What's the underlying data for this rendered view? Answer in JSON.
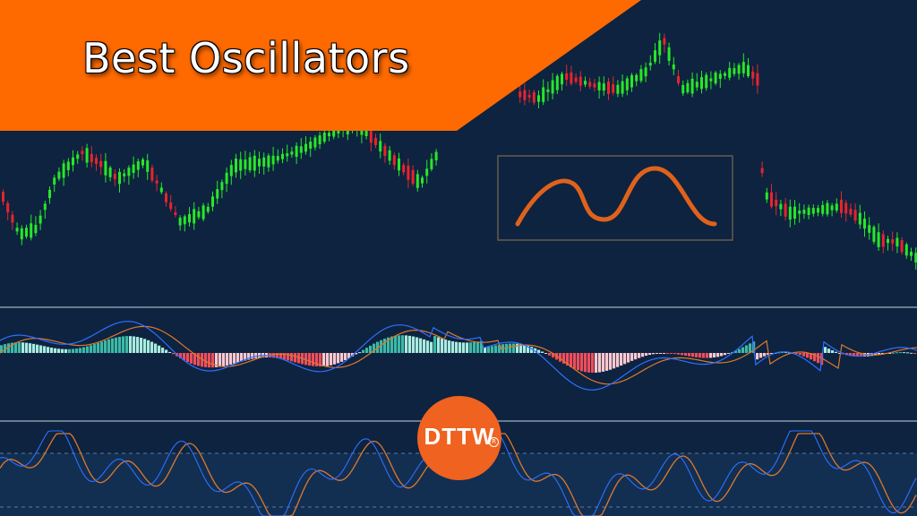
{
  "banner": {
    "title": "Best Oscillators",
    "color": "#ff6a00"
  },
  "logo": {
    "text": "DTTW",
    "registered": "R",
    "color": "#f0621f"
  },
  "colors": {
    "background": "#0d2340",
    "candle_up": "#27e827",
    "candle_down": "#e8242c",
    "macd_line": "#2f6fff",
    "signal_line": "#e0782a",
    "hist_pos": "#3db9a6",
    "hist_pos_light": "#a8ece0",
    "hist_neg": "#f04d5a",
    "hist_neg_light": "#ffc8cf",
    "stoch_k": "#2f6fff",
    "stoch_d": "#e0782a",
    "inset_curve": "#e0621a"
  },
  "icons": {
    "inset": "oscillator-wave-icon"
  }
}
